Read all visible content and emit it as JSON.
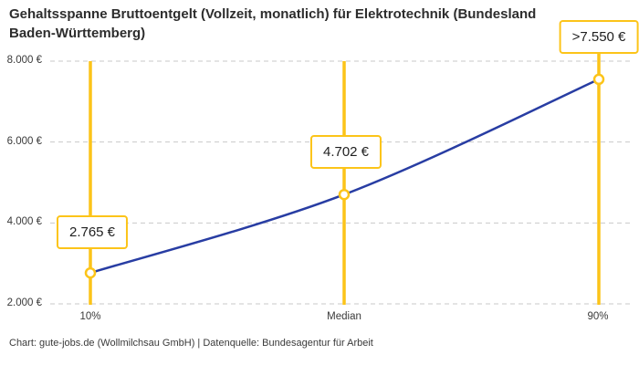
{
  "chart_data": {
    "type": "line",
    "title": "Gehaltsspanne Bruttoentgelt (Vollzeit, monatlich) für Elektrotechnik (Bundesland Baden-Württemberg)",
    "categories": [
      "10%",
      "Median",
      "90%"
    ],
    "values": [
      2765,
      4702,
      7550
    ],
    "point_labels": [
      "2.765 €",
      "4.702 €",
      ">7.550 €"
    ],
    "xlabel": "",
    "ylabel": "",
    "ylim": [
      2000,
      8000
    ],
    "ytick_values": [
      8000,
      6000,
      4000,
      2000
    ],
    "ytick_labels": [
      "8.000 €",
      "6.000 €",
      "4.000 €",
      "2.000 €"
    ],
    "grid": "horizontal-dashed",
    "legend": "none",
    "series_style": "smooth curve with open circle markers on vertical percentile highlight lines",
    "colors": {
      "line": "#283da3",
      "highlight": "#fcc419",
      "grid": "#c9c9c9",
      "marker_fill": "#ffffff",
      "text": "#3a3a3a",
      "title": "#2d2d2d",
      "background": "#ffffff"
    }
  },
  "footer": {
    "credit": "Chart: gute-jobs.de (Wollmilchsau GmbH) | Datenquelle: Bundesagentur für Arbeit"
  }
}
